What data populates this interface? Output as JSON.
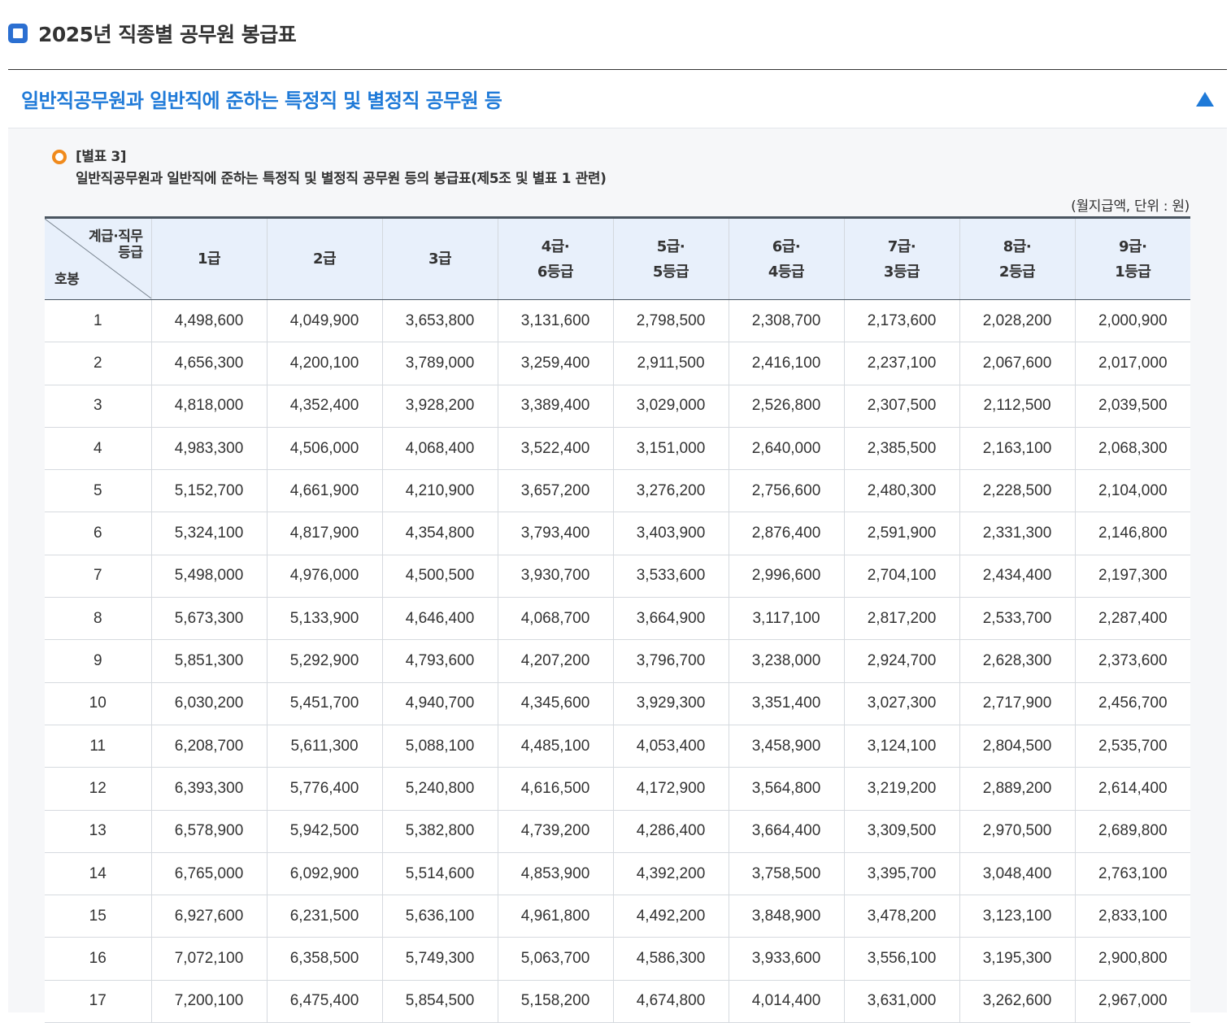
{
  "header": {
    "title": "2025년 직종별 공무원 봉급표",
    "icon": "square-icon"
  },
  "section": {
    "title": "일반직공무원과 일반직에 준하는 특정직 및 별정직 공무원 등",
    "toggle_icon": "triangle-up-icon",
    "accent": "#1f7ad8"
  },
  "caption": {
    "label": "[별표 3]",
    "title": "일반직공무원과 일반직에 준하는 특정직 및 별정직 공무원 등의 봉급표(제5조 및 별표 1 관련)",
    "unit": "(월지급액, 단위 : 원)"
  },
  "table": {
    "corner_top_line1": "계급·직무",
    "corner_top_line2": "등급",
    "corner_bottom": "호봉",
    "columns": [
      {
        "line1": "1급",
        "line2": ""
      },
      {
        "line1": "2급",
        "line2": ""
      },
      {
        "line1": "3급",
        "line2": ""
      },
      {
        "line1": "4급·",
        "line2": "6등급"
      },
      {
        "line1": "5급·",
        "line2": "5등급"
      },
      {
        "line1": "6급·",
        "line2": "4등급"
      },
      {
        "line1": "7급·",
        "line2": "3등급"
      },
      {
        "line1": "8급·",
        "line2": "2등급"
      },
      {
        "line1": "9급·",
        "line2": "1등급"
      }
    ],
    "rows": [
      {
        "step": "1",
        "values": [
          "4,498,600",
          "4,049,900",
          "3,653,800",
          "3,131,600",
          "2,798,500",
          "2,308,700",
          "2,173,600",
          "2,028,200",
          "2,000,900"
        ]
      },
      {
        "step": "2",
        "values": [
          "4,656,300",
          "4,200,100",
          "3,789,000",
          "3,259,400",
          "2,911,500",
          "2,416,100",
          "2,237,100",
          "2,067,600",
          "2,017,000"
        ]
      },
      {
        "step": "3",
        "values": [
          "4,818,000",
          "4,352,400",
          "3,928,200",
          "3,389,400",
          "3,029,000",
          "2,526,800",
          "2,307,500",
          "2,112,500",
          "2,039,500"
        ]
      },
      {
        "step": "4",
        "values": [
          "4,983,300",
          "4,506,000",
          "4,068,400",
          "3,522,400",
          "3,151,000",
          "2,640,000",
          "2,385,500",
          "2,163,100",
          "2,068,300"
        ]
      },
      {
        "step": "5",
        "values": [
          "5,152,700",
          "4,661,900",
          "4,210,900",
          "3,657,200",
          "3,276,200",
          "2,756,600",
          "2,480,300",
          "2,228,500",
          "2,104,000"
        ]
      },
      {
        "step": "6",
        "values": [
          "5,324,100",
          "4,817,900",
          "4,354,800",
          "3,793,400",
          "3,403,900",
          "2,876,400",
          "2,591,900",
          "2,331,300",
          "2,146,800"
        ]
      },
      {
        "step": "7",
        "values": [
          "5,498,000",
          "4,976,000",
          "4,500,500",
          "3,930,700",
          "3,533,600",
          "2,996,600",
          "2,704,100",
          "2,434,400",
          "2,197,300"
        ]
      },
      {
        "step": "8",
        "values": [
          "5,673,300",
          "5,133,900",
          "4,646,400",
          "4,068,700",
          "3,664,900",
          "3,117,100",
          "2,817,200",
          "2,533,700",
          "2,287,400"
        ]
      },
      {
        "step": "9",
        "values": [
          "5,851,300",
          "5,292,900",
          "4,793,600",
          "4,207,200",
          "3,796,700",
          "3,238,000",
          "2,924,700",
          "2,628,300",
          "2,373,600"
        ]
      },
      {
        "step": "10",
        "values": [
          "6,030,200",
          "5,451,700",
          "4,940,700",
          "4,345,600",
          "3,929,300",
          "3,351,400",
          "3,027,300",
          "2,717,900",
          "2,456,700"
        ]
      },
      {
        "step": "11",
        "values": [
          "6,208,700",
          "5,611,300",
          "5,088,100",
          "4,485,100",
          "4,053,400",
          "3,458,900",
          "3,124,100",
          "2,804,500",
          "2,535,700"
        ]
      },
      {
        "step": "12",
        "values": [
          "6,393,300",
          "5,776,400",
          "5,240,800",
          "4,616,500",
          "4,172,900",
          "3,564,800",
          "3,219,200",
          "2,889,200",
          "2,614,400"
        ]
      },
      {
        "step": "13",
        "values": [
          "6,578,900",
          "5,942,500",
          "5,382,800",
          "4,739,200",
          "4,286,400",
          "3,664,400",
          "3,309,500",
          "2,970,500",
          "2,689,800"
        ]
      },
      {
        "step": "14",
        "values": [
          "6,765,000",
          "6,092,900",
          "5,514,600",
          "4,853,900",
          "4,392,200",
          "3,758,500",
          "3,395,700",
          "3,048,400",
          "2,763,100"
        ]
      },
      {
        "step": "15",
        "values": [
          "6,927,600",
          "6,231,500",
          "5,636,100",
          "4,961,800",
          "4,492,200",
          "3,848,900",
          "3,478,200",
          "3,123,100",
          "2,833,100"
        ]
      },
      {
        "step": "16",
        "values": [
          "7,072,100",
          "6,358,500",
          "5,749,300",
          "5,063,700",
          "4,586,300",
          "3,933,600",
          "3,556,100",
          "3,195,300",
          "2,900,800"
        ]
      },
      {
        "step": "17",
        "values": [
          "7,200,100",
          "6,475,400",
          "5,854,500",
          "5,158,200",
          "4,674,800",
          "4,014,400",
          "3,631,000",
          "3,262,600",
          "2,967,000"
        ]
      }
    ]
  }
}
